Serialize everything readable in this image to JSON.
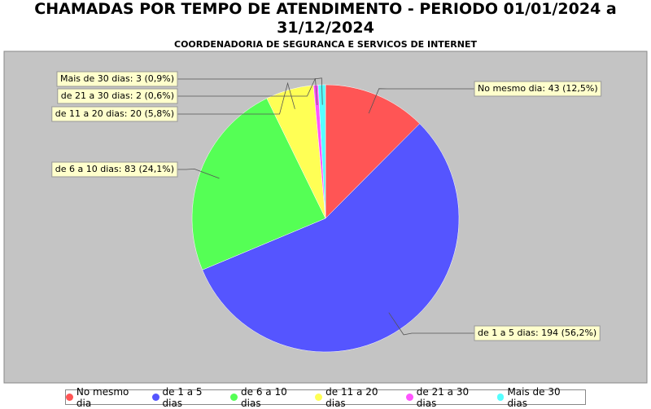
{
  "chart_data": {
    "type": "pie",
    "title": "CHAMADAS POR TEMPO DE ATENDIMENTO - PERIODO 01/01/2024 a 31/12/2024",
    "subtitle": "COORDENADORIA DE SEGURANCA E SERVICOS DE INTERNET",
    "categories": [
      "No mesmo dia",
      "de 1 a 5 dias",
      "de 6 a 10 dias",
      "de 11 a 20 dias",
      "de 21 a 30 dias",
      "Mais de 30 dias"
    ],
    "values": [
      43,
      194,
      83,
      20,
      2,
      3
    ],
    "value_labels": [
      "No mesmo dia: 43 (12,5%)",
      "de 1 a 5 dias: 194 (56,2%)",
      "de 6 a 10 dias: 83 (24,1%)",
      "de 11 a 20 dias: 20 (5,8%)",
      "de 21 a 30 dias: 2 (0,6%)",
      "Mais de 30 dias: 3 (0,9%)"
    ],
    "colors": [
      "#ff5555",
      "#5555ff",
      "#55ff55",
      "#ffff55",
      "#ff55ff",
      "#55ffff"
    ],
    "legend": "bottom"
  }
}
